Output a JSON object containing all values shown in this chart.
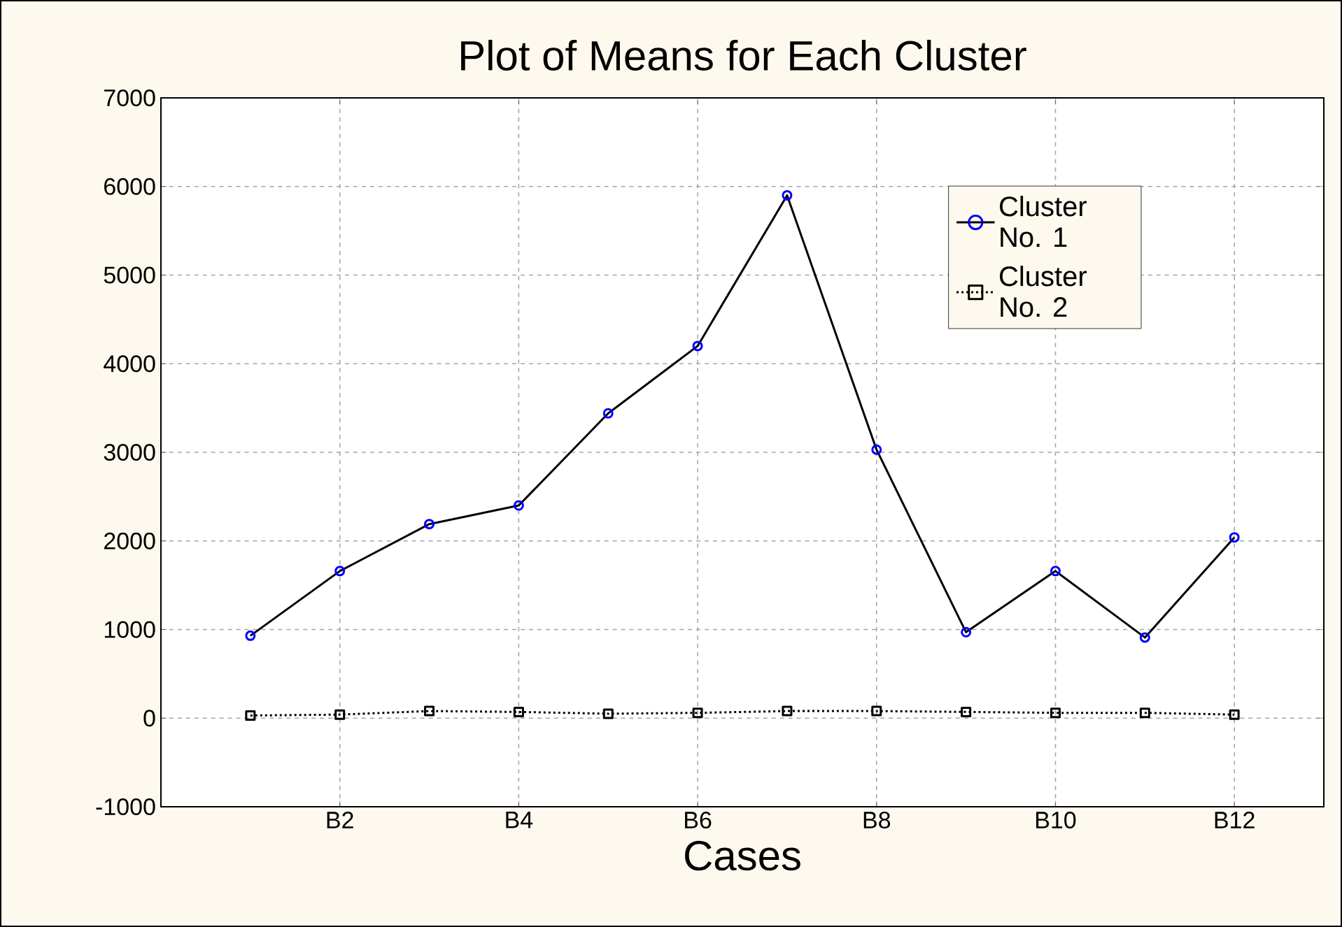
{
  "chart_data": {
    "type": "line",
    "title": "Plot of Means for Each Cluster",
    "xlabel": "Cases",
    "categories": [
      null,
      "B2",
      null,
      "B4",
      null,
      "B6",
      null,
      "B8",
      null,
      "B10",
      null,
      "B12"
    ],
    "series": [
      {
        "name": "Cluster No. 1",
        "color": "#000000",
        "marker": "circle",
        "line_style": "solid",
        "values": [
          930,
          1660,
          2190,
          2400,
          3440,
          4200,
          5900,
          3030,
          970,
          1660,
          910,
          2040
        ]
      },
      {
        "name": "Cluster No. 2",
        "color": "#000000",
        "marker": "square",
        "line_style": "dotted",
        "values": [
          30,
          40,
          80,
          70,
          50,
          60,
          80,
          80,
          70,
          60,
          60,
          40
        ]
      }
    ],
    "ylim": [
      -1000,
      7000
    ],
    "yticks": [
      -1000,
      0,
      1000,
      2000,
      3000,
      4000,
      5000,
      6000,
      7000
    ],
    "grid": true,
    "legend": "top right"
  }
}
